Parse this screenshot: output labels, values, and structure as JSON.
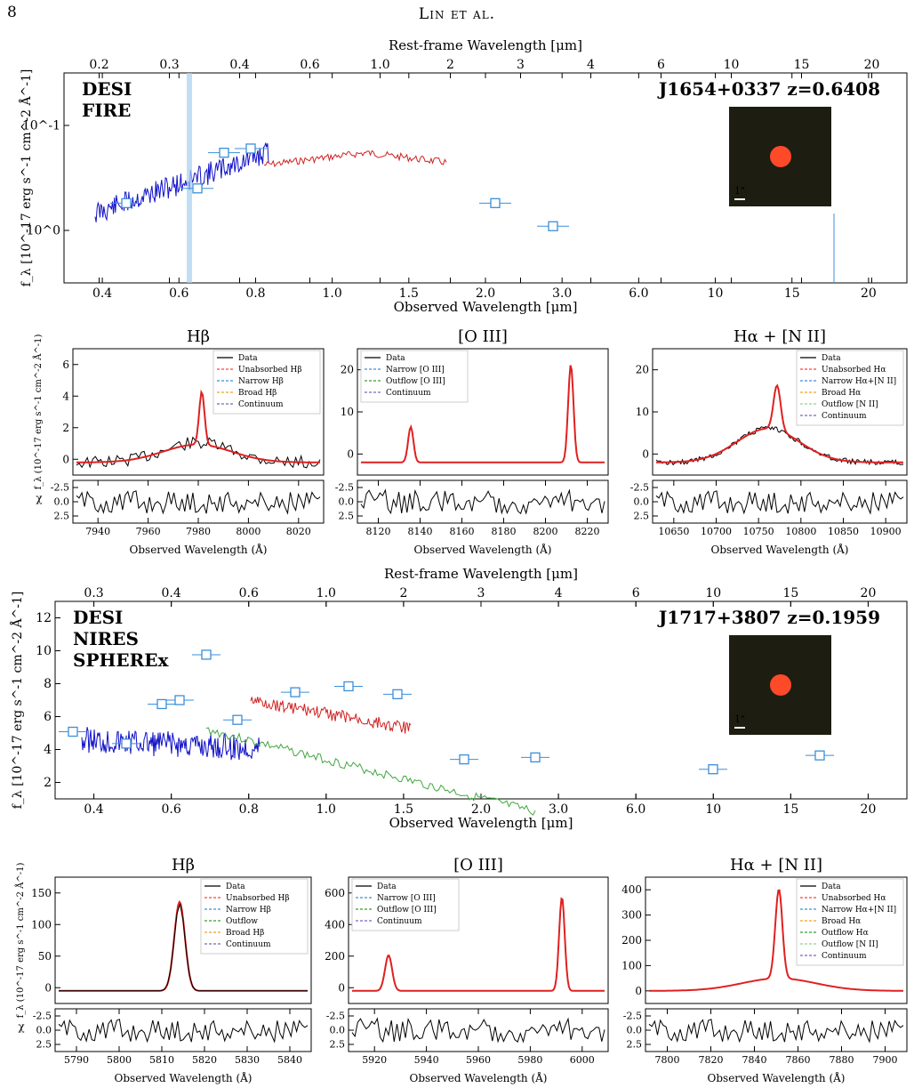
{
  "header": {
    "page_number": "8",
    "running_head": "Lin et al."
  },
  "colors": {
    "desi": "#1010c8",
    "fire": "#d02020",
    "nires": "#d02020",
    "spherex": "#40a840",
    "photometry": "#3b8fd8",
    "data": "#000000",
    "fit": "#e02020",
    "narrow": "#3b8fd8",
    "broad": "#f0a020",
    "outflow": "#30a030",
    "outflow_nii": "#90d090",
    "continuum": "#8060c0",
    "unabsorbed": "#ff4040"
  },
  "figure1": {
    "sed": {
      "top_axis_label": "Rest-frame Wavelength [μm]",
      "top_ticks": [
        "0.2",
        "0.3",
        "0.4",
        "0.6",
        "1.0",
        "2",
        "3",
        "4",
        "6",
        "10",
        "15",
        "20"
      ],
      "bottom_axis_label": "Observed Wavelength [μm]",
      "bottom_ticks": [
        "0.4",
        "0.6",
        "0.8",
        "1.0",
        "1.5",
        "2.0",
        "3.0",
        "6.0",
        "10",
        "15",
        "20"
      ],
      "y_axis_label": "f_λ [10^-17 erg s^-1 cm^-2 Å^-1]",
      "y_ticks": [
        "10^0",
        "10^-1"
      ],
      "legend": [
        "DESI",
        "FIRE"
      ],
      "object": "J1654+0337",
      "redshift": "z=0.6408",
      "scale_bar": "1\""
    },
    "panels": [
      {
        "title": "Hβ",
        "xlabel": "Observed Wavelength (Å)",
        "xticks": [
          "7940",
          "7960",
          "7980",
          "8000",
          "8020"
        ],
        "yticks": [
          "0",
          "2",
          "4",
          "6"
        ],
        "chi_ticks": [
          "2.5",
          "0.0",
          "-2.5"
        ],
        "legend": [
          "Data",
          "Unabsorbed Hβ",
          "Narrow Hβ",
          "Broad Hβ",
          "Continuum"
        ]
      },
      {
        "title": "[O III]",
        "xlabel": "Observed Wavelength (Å)",
        "xticks": [
          "8120",
          "8140",
          "8160",
          "8180",
          "8200",
          "8220"
        ],
        "yticks": [
          "0",
          "10",
          "20"
        ],
        "chi_ticks": [
          "2.5",
          "0.0",
          "-2.5"
        ],
        "legend": [
          "Data",
          "Narrow [O III]",
          "Outflow [O III]",
          "Continuum"
        ]
      },
      {
        "title": "Hα + [N II]",
        "xlabel": "Observed Wavelength (Å)",
        "xticks": [
          "10650",
          "10700",
          "10750",
          "10800",
          "10850",
          "10900"
        ],
        "yticks": [
          "0",
          "10",
          "20"
        ],
        "chi_ticks": [
          "2.5",
          "0.0",
          "-2.5"
        ],
        "legend": [
          "Data",
          "Unabsorbed Hα",
          "Narrow Hα+[N II]",
          "Broad Hα",
          "Outflow [N II]",
          "Continuum"
        ]
      }
    ],
    "panel_ylabel": "f_λ (10^-17 erg s^-1 cm^-2 Å^-1)",
    "chi_label": "χ"
  },
  "figure2": {
    "sed": {
      "top_axis_label": "Rest-frame Wavelength [μm]",
      "top_ticks": [
        "0.3",
        "0.4",
        "0.6",
        "1.0",
        "2",
        "3",
        "4",
        "6",
        "10",
        "15",
        "20"
      ],
      "bottom_axis_label": "Observed Wavelength [μm]",
      "bottom_ticks": [
        "0.4",
        "0.6",
        "0.8",
        "1.0",
        "1.5",
        "2.0",
        "3.0",
        "6.0",
        "10",
        "15",
        "20"
      ],
      "y_axis_label": "f_λ [10^-17 erg s^-1 cm^-2 Å^-1]",
      "y_ticks": [
        "2",
        "4",
        "6",
        "8",
        "10",
        "12"
      ],
      "legend": [
        "DESI",
        "NIRES",
        "SPHEREx"
      ],
      "object": "J1717+3807",
      "redshift": "z=0.1959",
      "scale_bar": "1\""
    },
    "panels": [
      {
        "title": "Hβ",
        "xlabel": "Observed Wavelength (Å)",
        "xticks": [
          "5790",
          "5800",
          "5810",
          "5820",
          "5830",
          "5840"
        ],
        "yticks": [
          "0",
          "50",
          "100",
          "150"
        ],
        "chi_ticks": [
          "2.5",
          "0.0",
          "-2.5"
        ],
        "legend": [
          "Data",
          "Unabsorbed Hβ",
          "Narrow Hβ",
          "Outflow",
          "Broad Hβ",
          "Continuum"
        ]
      },
      {
        "title": "[O III]",
        "xlabel": "Observed Wavelength (Å)",
        "xticks": [
          "5920",
          "5940",
          "5960",
          "5980",
          "6000"
        ],
        "yticks": [
          "0",
          "200",
          "400",
          "600"
        ],
        "chi_ticks": [
          "2.5",
          "0.0",
          "-2.5"
        ],
        "legend": [
          "Data",
          "Narrow [O III]",
          "Outflow [O III]",
          "Continuum"
        ]
      },
      {
        "title": "Hα + [N II]",
        "xlabel": "Observed Wavelength (Å)",
        "xticks": [
          "7800",
          "7820",
          "7840",
          "7860",
          "7880",
          "7900"
        ],
        "yticks": [
          "0",
          "100",
          "200",
          "300",
          "400"
        ],
        "chi_ticks": [
          "2.5",
          "0.0",
          "-2.5"
        ],
        "legend": [
          "Data",
          "Unabsorbed Hα",
          "Narrow Hα+[N II]",
          "Broad Hα",
          "Outflow Hα",
          "Outflow [N II]",
          "Continuum"
        ]
      }
    ],
    "panel_ylabel": "f_λ (10^-17 erg s^-1 cm^-2 Å^-1)",
    "chi_label": "χ"
  }
}
